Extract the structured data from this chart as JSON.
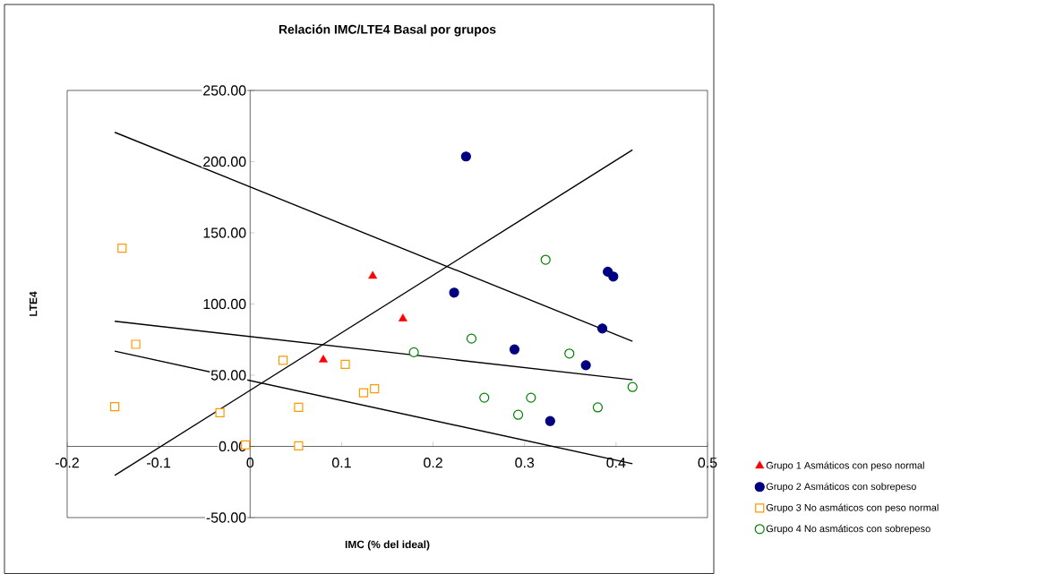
{
  "chart_data": {
    "type": "scatter",
    "title": "Relación IMC/LTE4 Basal por grupos",
    "xlabel": "IMC (% del ideal)",
    "ylabel": "LTE4",
    "xlim": [
      -0.2,
      0.5
    ],
    "ylim": [
      -50,
      250
    ],
    "xticks": [
      -0.2,
      -0.1,
      0,
      0.1,
      0.2,
      0.3,
      0.4,
      0.5
    ],
    "yticks": [
      {
        "value": -50,
        "label": "-50.00"
      },
      {
        "value": 0,
        "label": "0.00"
      },
      {
        "value": 50,
        "label": "50.00"
      },
      {
        "value": 100,
        "label": "100.00"
      },
      {
        "value": 150,
        "label": "150.00"
      },
      {
        "value": 200,
        "label": "200.00"
      },
      {
        "value": 250,
        "label": "250.00"
      }
    ],
    "grid": false,
    "legend": "bottom right",
    "series": [
      {
        "type": "line",
        "color": "#000000",
        "marker": "none",
        "line_style": "solid",
        "x": [
          -0.148,
          0.418
        ],
        "values": [
          220.6,
          73.8
        ]
      },
      {
        "type": "line",
        "color": "#000000",
        "marker": "none",
        "line_style": "solid",
        "x": [
          -0.148,
          0.418
        ],
        "values": [
          -20.4,
          208.3
        ]
      },
      {
        "type": "line",
        "color": "#000000",
        "marker": "none",
        "line_style": "solid",
        "x": [
          -0.148,
          0.418
        ],
        "values": [
          87.9,
          46.8
        ]
      },
      {
        "type": "line",
        "color": "#000000",
        "marker": "none",
        "line_style": "solid",
        "x": [
          -0.148,
          0.418
        ],
        "values": [
          66.9,
          -12.2
        ]
      },
      {
        "name": "Grupo 1 Asmáticos con peso normal",
        "color": "#ff0000",
        "marker": "triangle",
        "x": [
          0.134,
          0.167,
          0.08
        ],
        "values": [
          119.6,
          89.7,
          60.8
        ]
      },
      {
        "name": "Grupo 2 Asmáticos con sobrepeso",
        "color": "#000080",
        "marker": "circle",
        "x": [
          0.236,
          0.223,
          0.289,
          0.391,
          0.397,
          0.385,
          0.367,
          0.328
        ],
        "values": [
          203.6,
          108.0,
          68.1,
          122.7,
          119.3,
          82.8,
          57.0,
          17.8
        ]
      },
      {
        "name": "Grupo 3 No asmáticos con peso normal",
        "color": "#ff9900",
        "marker": "square",
        "x": [
          -0.14,
          -0.125,
          -0.148,
          -0.033,
          0.036,
          0.104,
          0.053,
          0.124,
          0.136,
          -0.005,
          0.053
        ],
        "values": [
          139.2,
          71.7,
          27.9,
          23.7,
          60.4,
          57.6,
          27.4,
          37.7,
          40.5,
          1.0,
          0.4
        ]
      },
      {
        "name": "Grupo 4 No asmáticos con sobrepeso",
        "color": "#008000",
        "marker": "circle",
        "x": [
          0.179,
          0.242,
          0.323,
          0.349,
          0.418,
          0.256,
          0.307,
          0.293,
          0.38
        ],
        "values": [
          66.1,
          75.7,
          131.1,
          65.2,
          41.7,
          34.2,
          34.2,
          22.2,
          27.4
        ]
      }
    ]
  }
}
